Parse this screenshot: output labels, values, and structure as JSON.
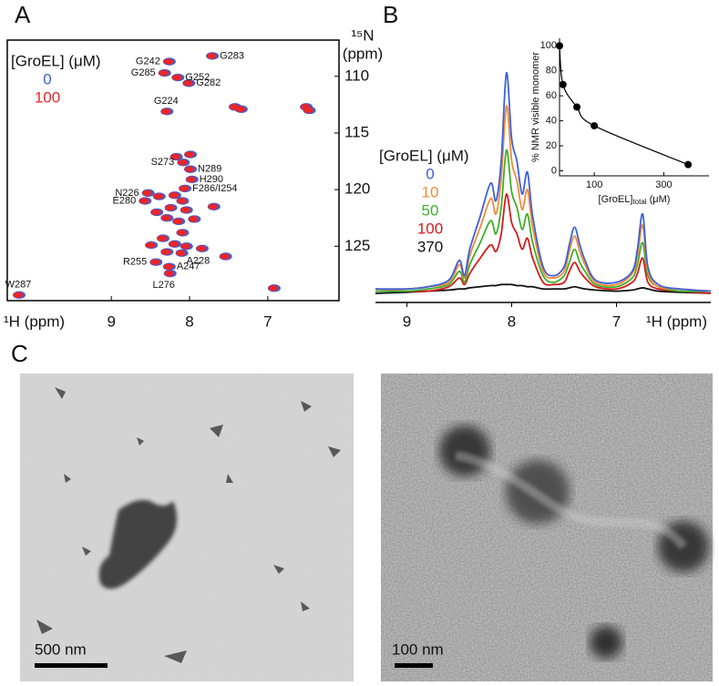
{
  "panel_labels": [
    "A",
    "B",
    "C"
  ],
  "scale_bars": [
    "500 nm",
    "100 nm"
  ],
  "chart_data": [
    {
      "type": "scatter",
      "legend_title": "[GroEL] (μM)",
      "x_label": "¹H (ppm)",
      "y_label": {
        "nucleus": "¹⁵N",
        "unit": "(ppm)"
      },
      "xlim": [
        10.33,
        6.09
      ],
      "ylim": [
        129.8,
        106.8
      ],
      "xticks": [
        9,
        8,
        7
      ],
      "yticks": [
        110,
        115,
        120,
        125
      ],
      "x": [
        8.27,
        7.72,
        8.33,
        8.16,
        8.02,
        8.3,
        8.09,
        8.0,
        7.98,
        8.07,
        8.54,
        8.58,
        8.44,
        8.11,
        8.27,
        8.26,
        10.19,
        7.43,
        7.35,
        6.52,
        6.48,
        8.18,
        8.0,
        8.2,
        8.1,
        8.25,
        8.05,
        8.3,
        8.15,
        7.95,
        8.35,
        8.2,
        8.05,
        8.3,
        7.85,
        7.55,
        6.93,
        8.43,
        8.1,
        7.7,
        8.4,
        8.5
      ],
      "point_labels": [
        "G242",
        "G283",
        "G285",
        "G252",
        "G282",
        "G224",
        "S273",
        "N289",
        "H290",
        "F286/I254",
        "N226",
        "E280",
        "R255",
        "A228",
        "A247",
        "L276",
        "W287",
        null,
        null,
        null,
        null,
        null,
        null,
        null,
        null,
        null,
        null,
        null,
        null,
        null,
        null,
        null,
        null,
        null,
        null,
        null,
        null,
        null,
        null,
        null,
        null,
        null
      ],
      "series": [
        {
          "name": "0",
          "color": "#3d5fd9",
          "values": [
            108.7,
            108.2,
            109.7,
            110.1,
            110.6,
            113.1,
            117.6,
            118.2,
            119.1,
            119.9,
            120.3,
            121.0,
            126.4,
            125.6,
            126.8,
            127.4,
            129.3,
            112.7,
            112.9,
            112.7,
            113.0,
            117.1,
            116.9,
            120.5,
            121.0,
            121.6,
            121.8,
            122.5,
            122.8,
            122.6,
            124.3,
            124.8,
            125.0,
            125.5,
            125.2,
            125.9,
            128.7,
            122.0,
            123.8,
            121.5,
            120.6,
            124.9
          ]
        },
        {
          "name": "100",
          "color": "#e8262a",
          "values": [
            108.7,
            108.2,
            109.7,
            110.1,
            110.6,
            113.1,
            117.6,
            118.2,
            119.1,
            119.9,
            120.3,
            121.0,
            126.4,
            125.6,
            126.8,
            127.4,
            129.3,
            112.7,
            112.9,
            112.7,
            113.0,
            117.1,
            116.9,
            120.5,
            121.0,
            121.6,
            121.8,
            122.5,
            122.8,
            122.6,
            124.3,
            124.8,
            125.0,
            125.5,
            125.2,
            125.9,
            128.7,
            122.0,
            123.8,
            121.5,
            120.6,
            124.9
          ]
        }
      ]
    },
    {
      "type": "line",
      "legend_title": "[GroEL] (μM)",
      "x_label": "¹H (ppm)",
      "xlim": [
        9.3,
        6.1
      ],
      "xticks": [
        9,
        8,
        7
      ],
      "x": [
        9.3,
        9.0,
        8.8,
        8.6,
        8.5,
        8.45,
        8.4,
        8.3,
        8.2,
        8.15,
        8.1,
        8.05,
        8.0,
        7.95,
        7.9,
        7.85,
        7.8,
        7.7,
        7.6,
        7.5,
        7.45,
        7.4,
        7.35,
        7.3,
        7.2,
        7.0,
        6.85,
        6.8,
        6.75,
        6.7,
        6.6,
        6.4,
        6.1
      ],
      "series": [
        {
          "name": "0",
          "color": "#3d5fd9",
          "values": [
            2,
            2,
            3,
            6,
            15,
            8,
            20,
            35,
            50,
            42,
            60,
            100,
            70,
            60,
            45,
            55,
            35,
            12,
            8,
            12,
            22,
            30,
            22,
            15,
            6,
            5,
            10,
            20,
            36,
            12,
            4,
            2,
            1
          ]
        },
        {
          "name": "10",
          "color": "#f08a3a",
          "values": [
            2,
            2,
            3,
            5,
            13,
            7,
            17,
            30,
            43,
            36,
            52,
            85,
            60,
            51,
            38,
            47,
            30,
            10,
            7,
            10,
            19,
            26,
            19,
            13,
            5,
            4,
            9,
            17,
            31,
            10,
            3,
            2,
            1
          ]
        },
        {
          "name": "50",
          "color": "#3fae2a",
          "values": [
            1,
            1,
            2,
            4,
            10,
            5,
            13,
            23,
            33,
            27,
            39,
            65,
            46,
            39,
            29,
            36,
            23,
            8,
            5,
            8,
            14,
            20,
            14,
            10,
            4,
            3,
            7,
            13,
            23,
            8,
            3,
            1,
            1
          ]
        },
        {
          "name": "100",
          "color": "#d7191c",
          "values": [
            1,
            1,
            1,
            3,
            7,
            4,
            9,
            16,
            22,
            19,
            27,
            45,
            32,
            27,
            20,
            25,
            16,
            5,
            4,
            5,
            10,
            14,
            10,
            7,
            3,
            2,
            5,
            9,
            16,
            5,
            2,
            1,
            0
          ]
        },
        {
          "name": "370",
          "color": "#111111",
          "values": [
            0,
            0.5,
            1,
            1.5,
            2,
            2,
            2.5,
            3,
            3.5,
            3.5,
            4,
            4,
            4,
            3.5,
            3.5,
            3,
            3,
            2,
            2,
            2,
            2.5,
            3,
            2.5,
            2,
            1.5,
            1,
            1.5,
            2,
            2.5,
            2,
            1,
            0.5,
            0
          ]
        }
      ]
    },
    {
      "type": "line",
      "x_label": {
        "main": "[GroEL]",
        "sub": "total",
        "unit": " (μM)"
      },
      "y_label": "% NMR visible monomer",
      "xlim": [
        0,
        430
      ],
      "ylim": [
        -4,
        106
      ],
      "xticks": [
        100,
        300
      ],
      "yticks": [
        0,
        20,
        40,
        60,
        80,
        100
      ],
      "x": [
        0,
        10,
        50,
        100,
        370
      ],
      "values": [
        100,
        69,
        51,
        36,
        5
      ],
      "color": "#000000"
    }
  ]
}
